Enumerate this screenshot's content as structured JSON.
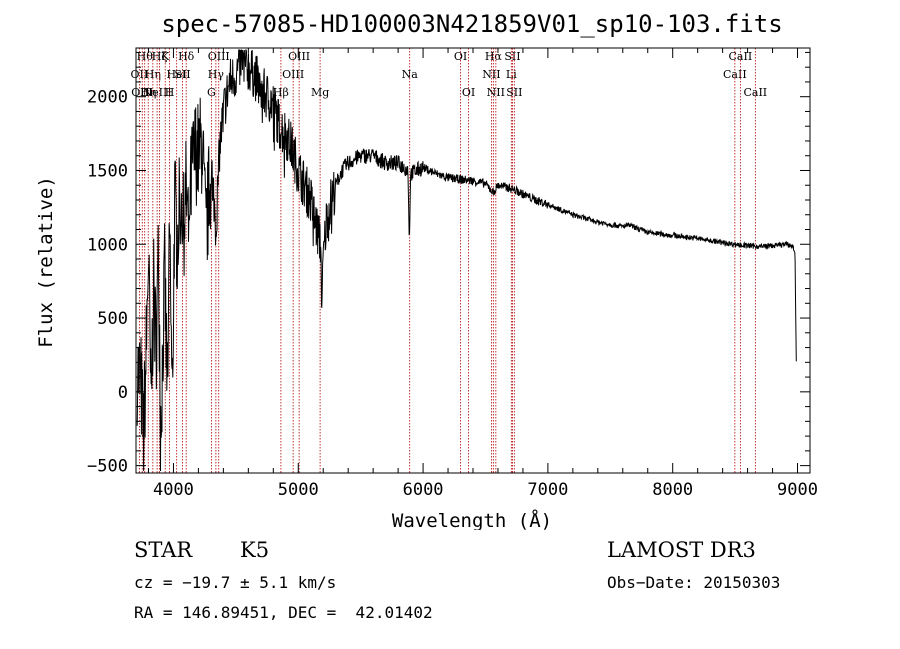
{
  "chart_data": {
    "type": "line",
    "title": "spec-57085-HD100003N421859V01_sp10-103.fits",
    "xlabel": "Wavelength (Å)",
    "ylabel": "Flux (relative)",
    "xlim": [
      3700,
      9100
    ],
    "ylim": [
      -550,
      2330
    ],
    "xticks": [
      4000,
      5000,
      6000,
      7000,
      8000,
      9000
    ],
    "yticks": [
      -500,
      0,
      500,
      1000,
      1500,
      2000
    ],
    "spectrum_anchor_points": [
      [
        3710,
        150
      ],
      [
        3740,
        50
      ],
      [
        3760,
        -300
      ],
      [
        3780,
        200
      ],
      [
        3800,
        950
      ],
      [
        3820,
        -150
      ],
      [
        3840,
        700
      ],
      [
        3860,
        300
      ],
      [
        3880,
        900
      ],
      [
        3900,
        -200
      ],
      [
        3930,
        800
      ],
      [
        3950,
        0
      ],
      [
        3970,
        1100
      ],
      [
        3990,
        -100
      ],
      [
        4010,
        1300
      ],
      [
        4030,
        1000
      ],
      [
        4060,
        1400
      ],
      [
        4080,
        1100
      ],
      [
        4100,
        1350
      ],
      [
        4120,
        1200
      ],
      [
        4150,
        1500
      ],
      [
        4180,
        1650
      ],
      [
        4200,
        1600
      ],
      [
        4230,
        1700
      ],
      [
        4260,
        1050
      ],
      [
        4290,
        1400
      ],
      [
        4310,
        1500
      ],
      [
        4340,
        1100
      ],
      [
        4370,
        1650
      ],
      [
        4400,
        1900
      ],
      [
        4450,
        2100
      ],
      [
        4500,
        2150
      ],
      [
        4550,
        2250
      ],
      [
        4600,
        2200
      ],
      [
        4650,
        2150
      ],
      [
        4700,
        2050
      ],
      [
        4750,
        2000
      ],
      [
        4800,
        1950
      ],
      [
        4850,
        1800
      ],
      [
        4900,
        1750
      ],
      [
        4950,
        1650
      ],
      [
        5000,
        1500
      ],
      [
        5050,
        1400
      ],
      [
        5100,
        1300
      ],
      [
        5150,
        1100
      ],
      [
        5180,
        1000
      ],
      [
        5190,
        550
      ],
      [
        5200,
        900
      ],
      [
        5230,
        1200
      ],
      [
        5300,
        1400
      ],
      [
        5350,
        1500
      ],
      [
        5400,
        1550
      ],
      [
        5500,
        1600
      ],
      [
        5600,
        1600
      ],
      [
        5700,
        1550
      ],
      [
        5800,
        1550
      ],
      [
        5880,
        1500
      ],
      [
        5890,
        1000
      ],
      [
        5900,
        1480
      ],
      [
        6000,
        1520
      ],
      [
        6100,
        1480
      ],
      [
        6200,
        1450
      ],
      [
        6300,
        1440
      ],
      [
        6400,
        1430
      ],
      [
        6500,
        1410
      ],
      [
        6563,
        1350
      ],
      [
        6600,
        1400
      ],
      [
        6700,
        1380
      ],
      [
        6800,
        1340
      ],
      [
        6900,
        1300
      ],
      [
        7000,
        1270
      ],
      [
        7200,
        1200
      ],
      [
        7400,
        1150
      ],
      [
        7600,
        1120
      ],
      [
        7650,
        1130
      ],
      [
        7800,
        1080
      ],
      [
        8000,
        1060
      ],
      [
        8200,
        1040
      ],
      [
        8400,
        1010
      ],
      [
        8500,
        1000
      ],
      [
        8600,
        990
      ],
      [
        8700,
        985
      ],
      [
        8800,
        990
      ],
      [
        8900,
        1000
      ],
      [
        8960,
        990
      ],
      [
        8980,
        950
      ],
      [
        8990,
        200
      ]
    ],
    "line_markers": [
      {
        "wavelength": 3727,
        "label": "OII",
        "row": 1
      },
      {
        "wavelength": 3750,
        "label": "OIII",
        "row": 2
      },
      {
        "wavelength": 3770,
        "label": "Hθ",
        "row": 0
      },
      {
        "wavelength": 3798,
        "label": "Hη",
        "row": 2
      },
      {
        "wavelength": 3835,
        "label": "Hη",
        "row": 1
      },
      {
        "wavelength": 3869,
        "label": "NeIII",
        "row": 2
      },
      {
        "wavelength": 3889,
        "label": "Hζ",
        "row": 0
      },
      {
        "wavelength": 3934,
        "label": "K",
        "row": 0
      },
      {
        "wavelength": 3969,
        "label": "H",
        "row": 2
      },
      {
        "wavelength": 4026,
        "label": "HeI",
        "row": 1
      },
      {
        "wavelength": 4072,
        "label": "SII",
        "row": 1
      },
      {
        "wavelength": 4102,
        "label": "Hδ",
        "row": 0
      },
      {
        "wavelength": 4304,
        "label": "G",
        "row": 2
      },
      {
        "wavelength": 4340,
        "label": "Hγ",
        "row": 1
      },
      {
        "wavelength": 4363,
        "label": "OIII",
        "row": 0
      },
      {
        "wavelength": 4861,
        "label": "Hβ",
        "row": 2
      },
      {
        "wavelength": 4959,
        "label": "OIII",
        "row": 1
      },
      {
        "wavelength": 5007,
        "label": "OIII",
        "row": 0
      },
      {
        "wavelength": 5175,
        "label": "Mg",
        "row": 2
      },
      {
        "wavelength": 5893,
        "label": "Na",
        "row": 1
      },
      {
        "wavelength": 6300,
        "label": "OI",
        "row": 0
      },
      {
        "wavelength": 6364,
        "label": "OI",
        "row": 2
      },
      {
        "wavelength": 6548,
        "label": "NII",
        "row": 1
      },
      {
        "wavelength": 6563,
        "label": "Hα",
        "row": 0
      },
      {
        "wavelength": 6583,
        "label": "NII",
        "row": 2
      },
      {
        "wavelength": 6707,
        "label": "Li",
        "row": 1
      },
      {
        "wavelength": 6716,
        "label": "SII",
        "row": 0
      },
      {
        "wavelength": 6731,
        "label": "SII",
        "row": 2
      },
      {
        "wavelength": 8498,
        "label": "CaII",
        "row": 1
      },
      {
        "wavelength": 8542,
        "label": "CaII",
        "row": 0
      },
      {
        "wavelength": 8662,
        "label": "CaII",
        "row": 2
      }
    ]
  },
  "info": {
    "class_label": "STAR",
    "subclass": "K5",
    "survey": "LAMOST DR3",
    "cz": "cz = −19.7 ± 5.1 km/s",
    "obs_date": "Obs−Date: 20150303",
    "coords": "RA = 146.89451, DEC =  42.01402"
  },
  "colors": {
    "axis": "#000000",
    "spectrum": "#000000",
    "line_marker": "#b30000"
  }
}
